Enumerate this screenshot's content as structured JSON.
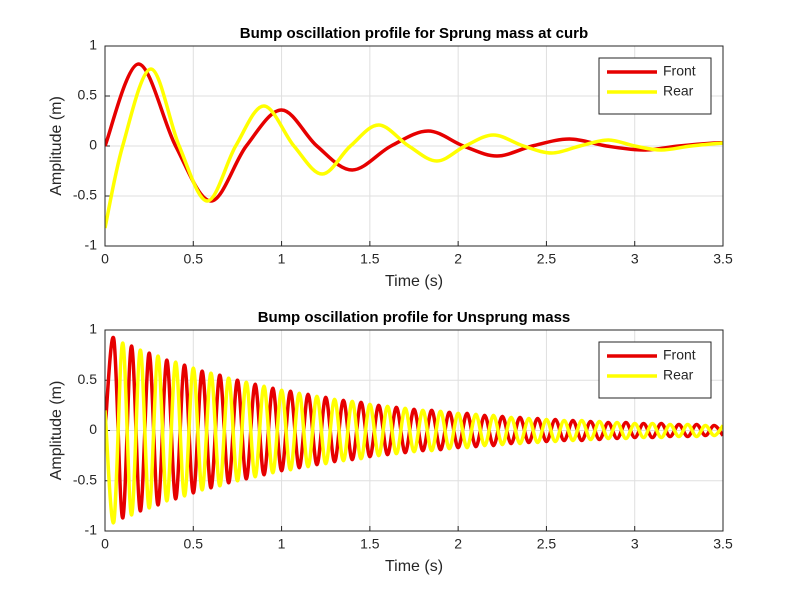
{
  "chart_data": [
    {
      "type": "line",
      "title": "Bump oscillation profile for Sprung mass at curb",
      "x_label": "Time (s)",
      "y_label": "Amplitude (m)",
      "xlim": [
        0,
        3.5
      ],
      "ylim": [
        -1,
        1
      ],
      "xticks": [
        0,
        0.5,
        1,
        1.5,
        2,
        2.5,
        3,
        3.5
      ],
      "yticks": [
        -1,
        -0.5,
        0,
        0.5,
        1
      ],
      "grid": true,
      "legend": "northeast",
      "series": [
        {
          "name": "Front",
          "color": "#e60000",
          "x": [
            0,
            0.19,
            0.4,
            0.6,
            0.8,
            1.0,
            1.2,
            1.4,
            1.62,
            1.83,
            2.03,
            2.22,
            2.42,
            2.63,
            2.84,
            3.05,
            3.25,
            3.45,
            3.5
          ],
          "values": [
            0,
            0.82,
            0,
            -0.55,
            0,
            0.36,
            0,
            -0.24,
            0,
            0.15,
            0,
            -0.1,
            0,
            0.07,
            0,
            -0.04,
            0,
            0.03,
            0.03
          ]
        },
        {
          "name": "Rear",
          "color": "#ffff00",
          "x": [
            0,
            0.1,
            0.26,
            0.42,
            0.58,
            0.74,
            0.9,
            1.07,
            1.23,
            1.39,
            1.55,
            1.72,
            1.88,
            2.04,
            2.2,
            2.37,
            2.53,
            2.69,
            2.85,
            3.0,
            3.15,
            3.32,
            3.5
          ],
          "values": [
            -0.82,
            0,
            0.77,
            0,
            -0.55,
            0,
            0.4,
            0,
            -0.28,
            0,
            0.21,
            0,
            -0.15,
            0,
            0.11,
            0,
            -0.07,
            0,
            0.06,
            0,
            -0.04,
            0,
            0.03
          ]
        }
      ]
    },
    {
      "type": "line",
      "title": "Bump oscillation profile for Unsprung mass",
      "x_label": "Time (s)",
      "y_label": "Amplitude (m)",
      "xlim": [
        0,
        3.5
      ],
      "ylim": [
        -1,
        1
      ],
      "xticks": [
        0,
        0.5,
        1,
        1.5,
        2,
        2.5,
        3,
        3.5
      ],
      "yticks": [
        -1,
        -0.5,
        0,
        0.5,
        1
      ],
      "grid": true,
      "legend": "northeast",
      "x": [
        0,
        0.05,
        0.1,
        0.15,
        0.2,
        0.25,
        0.3,
        0.35,
        0.4,
        0.45,
        0.5,
        0.55,
        0.6,
        0.65,
        0.7,
        0.75,
        0.8,
        0.85,
        0.9,
        0.95,
        1,
        1.05,
        1.1,
        1.15,
        1.2,
        1.25,
        1.3,
        1.35,
        1.4,
        1.45,
        1.5,
        1.55,
        1.6,
        1.65,
        1.7,
        1.75,
        1.8,
        1.85,
        1.9,
        1.95,
        2,
        2.05,
        2.1,
        2.15,
        2.2,
        2.25,
        2.3,
        2.35,
        2.4,
        2.45,
        2.5,
        2.55,
        2.6,
        2.65,
        2.7,
        2.75,
        2.8,
        2.85,
        2.9,
        2.95,
        3,
        3.05,
        3.1,
        3.15,
        3.2,
        3.25,
        3.3,
        3.35,
        3.4,
        3.45,
        3.5
      ],
      "series": [
        {
          "name": "Front",
          "color": "#e60000",
          "values": [
            0,
            0.91,
            -0.87,
            0.84,
            -0.8,
            0.77,
            -0.74,
            0.7,
            -0.68,
            0.65,
            -0.62,
            0.59,
            -0.57,
            0.55,
            -0.52,
            0.5,
            -0.48,
            0.46,
            -0.44,
            0.42,
            -0.4,
            0.39,
            -0.37,
            0.36,
            -0.34,
            0.33,
            -0.31,
            0.3,
            -0.29,
            0.28,
            -0.26,
            0.25,
            -0.24,
            0.23,
            -0.22,
            0.21,
            -0.2,
            0.2,
            -0.19,
            0.18,
            -0.17,
            0.17,
            -0.16,
            0.15,
            -0.15,
            0.14,
            -0.13,
            0.13,
            -0.12,
            0.12,
            -0.11,
            0.11,
            -0.1,
            0.1,
            -0.1,
            0.09,
            -0.09,
            0.08,
            -0.08,
            0.08,
            -0.07,
            0.07,
            -0.07,
            0.07,
            -0.06,
            0.06,
            -0.06,
            0.06,
            -0.05,
            0.05,
            -0.05
          ]
        },
        {
          "name": "Rear",
          "color": "#ffff00",
          "values": [
            0.2,
            -0.91,
            0.87,
            -0.84,
            0.8,
            -0.77,
            0.74,
            -0.7,
            0.68,
            -0.65,
            0.62,
            -0.59,
            0.57,
            -0.55,
            0.52,
            -0.5,
            0.48,
            -0.46,
            0.44,
            -0.42,
            0.4,
            -0.39,
            0.37,
            -0.36,
            0.34,
            -0.33,
            0.31,
            -0.3,
            0.29,
            -0.28,
            0.26,
            -0.25,
            0.24,
            -0.23,
            0.22,
            -0.21,
            0.2,
            -0.2,
            0.19,
            -0.18,
            0.17,
            -0.17,
            0.16,
            -0.15,
            0.15,
            -0.14,
            0.13,
            -0.13,
            0.12,
            -0.12,
            0.11,
            -0.11,
            0.1,
            -0.1,
            0.1,
            -0.09,
            0.09,
            -0.08,
            0.08,
            -0.08,
            0.07,
            -0.07,
            0.07,
            -0.07,
            0.06,
            -0.06,
            0.06,
            -0.06,
            0.05,
            -0.05,
            0.05
          ]
        }
      ]
    }
  ]
}
